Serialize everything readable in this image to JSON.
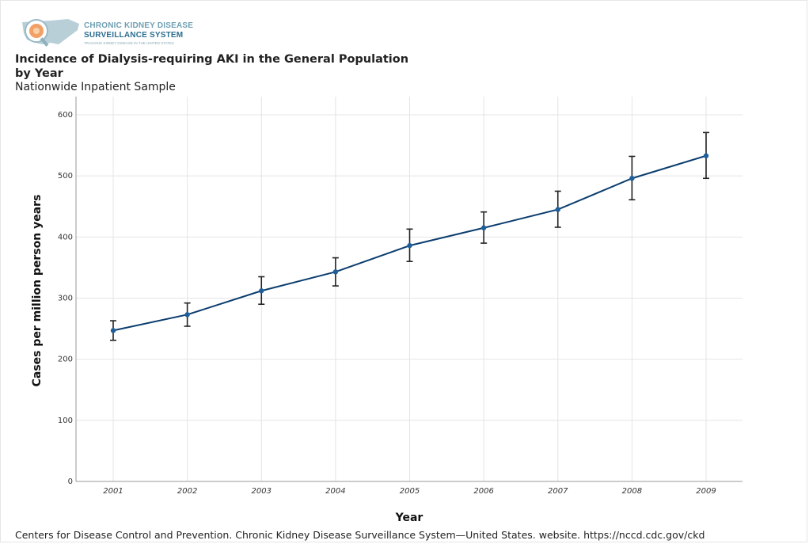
{
  "logo": {
    "line1": "CHRONIC KIDNEY DISEASE",
    "line2": "SURVEILLANCE SYSTEM",
    "line3": "TRACKING KIDNEY DISEASE IN THE UNITED STATES"
  },
  "footer": "Centers for Disease Control and Prevention. Chronic Kidney Disease Surveillance System—United States. website. https://nccd.cdc.gov/ckd",
  "colors": {
    "line": "#0b3d6e",
    "marker": "#1f5f99",
    "errorbar": "#222222",
    "grid": "#e4e4e4"
  },
  "chart_data": {
    "type": "line",
    "title": "Incidence of Dialysis-requiring AKI in the General Population by Year",
    "title_lines": [
      "Incidence of Dialysis-requiring AKI in the General Population",
      "by Year"
    ],
    "subtitle": "Nationwide Inpatient Sample",
    "xlabel": "Year",
    "ylabel": "Cases per million person years",
    "ylim": [
      0,
      600
    ],
    "yticks": [
      0,
      100,
      200,
      300,
      400,
      500,
      600
    ],
    "grid": true,
    "categories": [
      "2001",
      "2002",
      "2003",
      "2004",
      "2005",
      "2006",
      "2007",
      "2008",
      "2009"
    ],
    "series": [
      {
        "values": [
          247,
          273,
          312,
          343,
          386,
          415,
          445,
          496,
          533
        ],
        "error_low": [
          231,
          254,
          290,
          320,
          360,
          390,
          416,
          461,
          496
        ],
        "error_high": [
          263,
          292,
          335,
          366,
          413,
          441,
          475,
          532,
          571
        ]
      }
    ]
  }
}
